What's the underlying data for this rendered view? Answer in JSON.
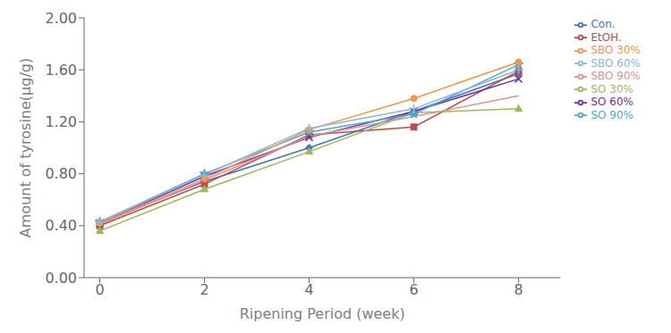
{
  "chart_data": {
    "type": "line",
    "xlabel": "Ripening Period (week)",
    "ylabel": "Amount of tyrosine(μg/g)",
    "x": [
      0,
      2,
      4,
      6,
      8
    ],
    "xlim": [
      -0.3,
      8.8
    ],
    "ylim": [
      0,
      2
    ],
    "xticks": [
      0,
      2,
      4,
      6,
      8
    ],
    "yticks": [
      {
        "value": 0,
        "label": "0.00"
      },
      {
        "value": 0.4,
        "label": "0.40"
      },
      {
        "value": 0.8,
        "label": "0.80"
      },
      {
        "value": 1.2,
        "label": "1.20"
      },
      {
        "value": 1.6,
        "label": "1.60"
      },
      {
        "value": 2,
        "label": "2.00"
      }
    ],
    "grid": false,
    "legend": "right",
    "series": [
      {
        "name": "Con.",
        "color": "#4472C4",
        "marker": "diamond",
        "values": [
          0.42,
          0.74,
          1.0,
          1.28,
          1.57
        ]
      },
      {
        "name": "EtOH.",
        "color": "#BE4B48",
        "marker": "square",
        "values": [
          0.4,
          0.72,
          1.1,
          1.16,
          1.59
        ]
      },
      {
        "name": "SO 30%",
        "color": "#9BBB59",
        "marker": "triangle",
        "values": [
          0.36,
          0.68,
          0.97,
          1.27,
          1.3
        ]
      },
      {
        "name": "SO 60%",
        "color": "#7030A0",
        "marker": "x",
        "values": [
          0.42,
          0.78,
          1.08,
          1.28,
          1.53
        ]
      },
      {
        "name": "SO 90%",
        "color": "#4BACC6",
        "marker": "star",
        "values": [
          0.43,
          0.8,
          1.12,
          1.26,
          1.64
        ]
      },
      {
        "name": "SBO 30%",
        "color": "#F79646",
        "marker": "circle",
        "values": [
          0.42,
          0.76,
          1.14,
          1.38,
          1.66
        ]
      },
      {
        "name": "SBO 60%",
        "color": "#8DB4E2",
        "marker": "plus",
        "values": [
          0.43,
          0.79,
          1.15,
          1.3,
          1.6
        ]
      },
      {
        "name": "SBO 90%",
        "color": "#D99694",
        "marker": "none",
        "values": [
          0.41,
          0.75,
          1.09,
          1.24,
          1.4
        ]
      }
    ]
  }
}
